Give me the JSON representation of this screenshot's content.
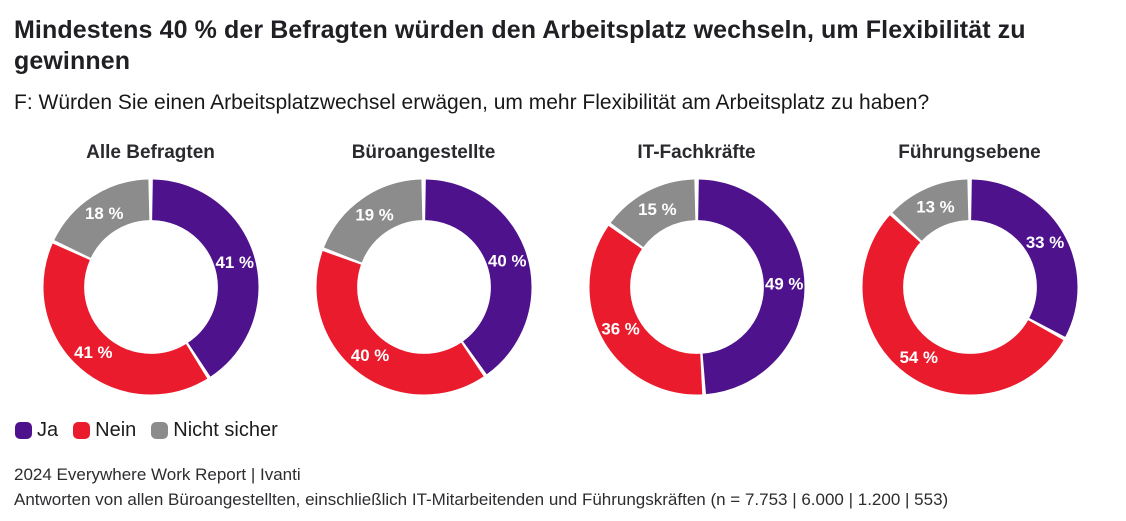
{
  "title": "Mindestens 40 % der Befragten würden den Arbeitsplatz wechseln, um Flexibilität zu gewinnen",
  "subtitle": "F: Würden Sie einen Arbeitsplatzwechsel erwägen, um mehr Flexibilität am Arbeitsplatz zu haben?",
  "legend": [
    {
      "label": "Ja",
      "color": "#4e128d"
    },
    {
      "label": "Nein",
      "color": "#ea1b2d"
    },
    {
      "label": "Nicht sicher",
      "color": "#8c8c8c"
    }
  ],
  "footer": {
    "line1": "2024 Everywhere Work Report | Ivanti",
    "line2": "Antworten von allen Büroangestellten, einschließlich IT-Mitarbeitenden und Führungskräften (n = 7.753 | 6.000 | 1.200 | 553)"
  },
  "chart_data": {
    "type": "pie",
    "subtype": "donut",
    "categories": [
      "Ja",
      "Nein",
      "Nicht sicher"
    ],
    "colors": [
      "#4e128d",
      "#ea1b2d",
      "#8c8c8c"
    ],
    "legend_position": "bottom-left",
    "charts": [
      {
        "title": "Alle Befragten",
        "values": [
          41,
          41,
          18
        ],
        "labels": [
          "41 %",
          "41 %",
          "18 %"
        ]
      },
      {
        "title": "Büroangestellte",
        "values": [
          40,
          40,
          19
        ],
        "labels": [
          "40 %",
          "40 %",
          "19 %"
        ]
      },
      {
        "title": "IT-Fachkräfte",
        "values": [
          49,
          36,
          15
        ],
        "labels": [
          "49 %",
          "36 %",
          "15 %"
        ]
      },
      {
        "title": "Führungsebene",
        "values": [
          33,
          54,
          13
        ],
        "labels": [
          "33 %",
          "54 %",
          "13 %"
        ]
      }
    ]
  }
}
